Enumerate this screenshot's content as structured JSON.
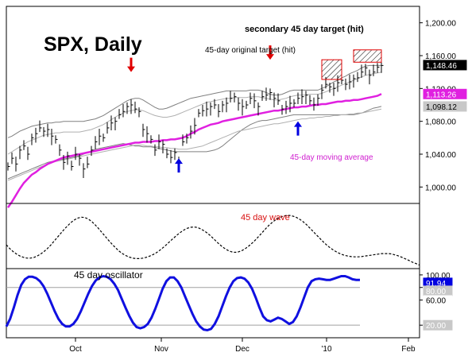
{
  "chart_data": {
    "type": "line",
    "title": "SPX, Daily",
    "annotations": {
      "secondary_target": "secondary 45 day target (hit)",
      "original_target": "45-day original target (hit)",
      "moving_average": "45-day moving average",
      "wave": "45 day wave",
      "oscillator": "45 day oscillator"
    },
    "x_tick_labels": [
      "Oct",
      "Nov",
      "Dec",
      "'10",
      "Feb"
    ],
    "price_panel": {
      "ylim": [
        980,
        1220
      ],
      "y_ticks": [
        1000,
        1040,
        1080,
        1120,
        1160,
        1200
      ],
      "y_tick_labels": [
        "1,000.00",
        "1,040.00",
        "1,080.00",
        "1,120.00",
        "1,160.00",
        "1,200.00"
      ],
      "value_tags": [
        {
          "label": "1,148.46",
          "value": 1148.46,
          "bg": "#000000",
          "fg": "#ffffff"
        },
        {
          "label": "1,113.26",
          "value": 1113.26,
          "bg": "#e020e0",
          "fg": "#ffffff"
        },
        {
          "label": "1,098.12",
          "value": 1098.12,
          "bg": "#c8c8c8",
          "fg": "#000000"
        }
      ],
      "close": [
        1025,
        1035,
        1028,
        1045,
        1050,
        1040,
        1060,
        1065,
        1072,
        1068,
        1070,
        1062,
        1058,
        1045,
        1030,
        1038,
        1025,
        1040,
        1035,
        1022,
        1028,
        1045,
        1055,
        1062,
        1060,
        1072,
        1078,
        1080,
        1088,
        1092,
        1098,
        1100,
        1095,
        1092,
        1070,
        1065,
        1058,
        1045,
        1055,
        1052,
        1040,
        1036,
        1042,
        1030,
        1055,
        1060,
        1068,
        1075,
        1090,
        1093,
        1095,
        1098,
        1100,
        1092,
        1100,
        1102,
        1108,
        1110,
        1102,
        1098,
        1100,
        1108,
        1105,
        1098,
        1110,
        1112,
        1115,
        1108,
        1105,
        1095,
        1098,
        1102,
        1102,
        1108,
        1110,
        1112,
        1105,
        1100,
        1108,
        1118,
        1125,
        1122,
        1120,
        1127,
        1130,
        1125,
        1128,
        1132,
        1133,
        1140,
        1145,
        1136,
        1140,
        1146,
        1148
      ],
      "ma45": [
        975,
        982,
        990,
        998,
        1005,
        1010,
        1015,
        1018,
        1022,
        1025,
        1028,
        1030,
        1032,
        1034,
        1036,
        1037,
        1038,
        1039,
        1040,
        1041,
        1042,
        1043,
        1044,
        1045,
        1046,
        1047,
        1048,
        1049,
        1050,
        1051,
        1052,
        1053,
        1054,
        1054,
        1055,
        1055,
        1055,
        1056,
        1056,
        1057,
        1057,
        1058,
        1058,
        1059,
        1060,
        1062,
        1065,
        1067,
        1070,
        1072,
        1074,
        1076,
        1077,
        1078,
        1080,
        1081,
        1082,
        1083,
        1084,
        1085,
        1086,
        1087,
        1088,
        1089,
        1090,
        1091,
        1092,
        1093,
        1093,
        1094,
        1095,
        1096,
        1097,
        1097,
        1098,
        1098,
        1099,
        1100,
        1100,
        1101,
        1101,
        1102,
        1103,
        1104,
        1104,
        1105,
        1105,
        1106,
        1106,
        1107,
        1108,
        1109,
        1110,
        1111,
        1113.26
      ],
      "upper_band": [
        1060,
        1062,
        1065,
        1068,
        1070,
        1072,
        1074,
        1075,
        1076,
        1077,
        1078,
        1078,
        1079,
        1079,
        1080,
        1080,
        1080,
        1080,
        1080,
        1080,
        1081,
        1082,
        1083,
        1085,
        1087,
        1090,
        1093,
        1096,
        1099,
        1102,
        1105,
        1107,
        1108,
        1108,
        1106,
        1103,
        1100,
        1097,
        1095,
        1095,
        1096,
        1098,
        1100,
        1102,
        1104,
        1106,
        1108,
        1109,
        1110,
        1111,
        1112,
        1113,
        1114,
        1115,
        1116,
        1117,
        1117,
        1117,
        1117,
        1117,
        1117,
        1118,
        1118,
        1118,
        1117,
        1115,
        1113,
        1112,
        1112,
        1113,
        1115,
        1117,
        1118,
        1118,
        1118,
        1118,
        1118,
        1118,
        1118,
        1120,
        1122,
        1125,
        1128,
        1130,
        1133,
        1135,
        1138,
        1140,
        1142,
        1145,
        1147,
        1148,
        1148,
        1148,
        1148
      ],
      "lower_band": [
        1010,
        1012,
        1014,
        1016,
        1018,
        1020,
        1022,
        1024,
        1026,
        1028,
        1030,
        1031,
        1032,
        1033,
        1034,
        1035,
        1036,
        1037,
        1038,
        1040,
        1042,
        1044,
        1046,
        1047,
        1048,
        1049,
        1050,
        1051,
        1052,
        1053,
        1052,
        1051,
        1050,
        1050,
        1049,
        1049,
        1049,
        1048,
        1047,
        1046,
        1045,
        1044,
        1043,
        1043,
        1043,
        1043,
        1043,
        1043,
        1043,
        1043,
        1043,
        1044,
        1045,
        1047,
        1050,
        1054,
        1058,
        1062,
        1066,
        1070,
        1073,
        1076,
        1078,
        1080,
        1081,
        1081,
        1082,
        1083,
        1084,
        1085,
        1086,
        1087,
        1088,
        1088,
        1088,
        1088,
        1088,
        1088,
        1088,
        1088,
        1088,
        1088,
        1088,
        1088,
        1088,
        1088,
        1088,
        1088,
        1089,
        1090,
        1092,
        1094,
        1096,
        1097,
        1098.12
      ],
      "inner_upper": [
        1040,
        1043,
        1046,
        1049,
        1052,
        1055,
        1057,
        1059,
        1061,
        1063,
        1064,
        1065,
        1066,
        1066,
        1067,
        1067,
        1067,
        1067,
        1067,
        1068,
        1069,
        1070,
        1072,
        1074,
        1076,
        1079,
        1082,
        1085,
        1088,
        1090,
        1092,
        1093,
        1094,
        1094,
        1093,
        1091,
        1089,
        1087,
        1086,
        1085,
        1085,
        1086,
        1087,
        1089,
        1091,
        1093,
        1095,
        1097,
        1099,
        1101,
        1103,
        1104,
        1105,
        1106,
        1107,
        1108,
        1108,
        1109,
        1109,
        1109,
        1109,
        1110,
        1110,
        1110,
        1109,
        1108,
        1107,
        1106,
        1106,
        1107,
        1108,
        1110,
        1111,
        1112,
        1112,
        1112,
        1113,
        1113,
        1113,
        1114,
        1116,
        1118,
        1120,
        1122,
        1124,
        1126,
        1128,
        1130,
        1132,
        1134,
        1136,
        1137,
        1138,
        1139,
        1140
      ],
      "inner_lower": [
        1008,
        1010,
        1012,
        1014,
        1016,
        1018,
        1020,
        1022,
        1024,
        1026,
        1028,
        1030,
        1031,
        1032,
        1033,
        1034,
        1035,
        1036,
        1037,
        1038,
        1039,
        1040,
        1041,
        1042,
        1043,
        1044,
        1045,
        1046,
        1047,
        1048,
        1049,
        1050,
        1051,
        1051,
        1051,
        1050,
        1050,
        1049,
        1049,
        1048,
        1048,
        1047,
        1047,
        1046,
        1046,
        1046,
        1047,
        1048,
        1049,
        1050,
        1052,
        1054,
        1056,
        1058,
        1060,
        1062,
        1064,
        1066,
        1068,
        1069,
        1070,
        1071,
        1072,
        1073,
        1074,
        1075,
        1076,
        1077,
        1077,
        1078,
        1079,
        1080,
        1081,
        1082,
        1083,
        1083,
        1084,
        1084,
        1085,
        1085,
        1086,
        1086,
        1087,
        1087,
        1088,
        1088,
        1089,
        1089,
        1090,
        1090,
        1091,
        1092,
        1093,
        1094,
        1095
      ],
      "target_boxes": [
        {
          "x_start": 79,
          "x_end": 84,
          "y_low": 1131,
          "y_high": 1155
        },
        {
          "x_start": 87,
          "x_end": 94,
          "y_low": 1152,
          "y_high": 1167
        }
      ],
      "red_arrows_x": [
        31,
        66
      ],
      "blue_arrows_x": [
        43,
        73
      ]
    },
    "wave_panel": {
      "ylim": [
        -1.3,
        1.3
      ],
      "wave": [
        -0.35,
        -0.5,
        -0.62,
        -0.72,
        -0.8,
        -0.85,
        -0.88,
        -0.88,
        -0.86,
        -0.8,
        -0.72,
        -0.62,
        -0.5,
        -0.36,
        -0.2,
        -0.04,
        0.12,
        0.28,
        0.42,
        0.55,
        0.65,
        0.72,
        0.75,
        0.74,
        0.68,
        0.58,
        0.45,
        0.3,
        0.14,
        -0.02,
        -0.18,
        -0.33,
        -0.47,
        -0.6,
        -0.7,
        -0.78,
        -0.84,
        -0.88,
        -0.9,
        -0.9,
        -0.88,
        -0.85,
        -0.8,
        -0.74,
        -0.66,
        -0.56,
        -0.45,
        -0.33,
        -0.2,
        -0.08,
        0.04,
        0.15,
        0.24,
        0.31,
        0.35,
        0.36,
        0.34,
        0.28,
        0.2,
        0.1,
        -0.02,
        -0.15,
        -0.28,
        -0.4,
        -0.5,
        -0.58,
        -0.63,
        -0.65,
        -0.63,
        -0.58,
        -0.5,
        -0.4,
        -0.28,
        -0.15,
        0,
        0.15,
        0.3,
        0.44,
        0.56,
        0.66,
        0.74,
        0.79,
        0.82,
        0.82,
        0.79,
        0.74,
        0.66,
        0.56,
        0.44,
        0.3,
        0.16,
        0.02,
        -0.12,
        -0.26,
        -0.38,
        -0.49,
        -0.58,
        -0.66,
        -0.72,
        -0.77,
        -0.8,
        -0.82,
        -0.83,
        -0.83,
        -0.82,
        -0.8,
        -0.78,
        -0.76,
        -0.74,
        -0.72,
        -0.7,
        -0.7,
        -0.7,
        -0.72,
        -0.76,
        -0.8,
        -0.86,
        -0.92,
        -0.98,
        -1.05,
        -1.1,
        -1.16
      ]
    },
    "oscillator_panel": {
      "ylim": [
        0,
        110
      ],
      "y_ticks": [
        20,
        60,
        80,
        100
      ],
      "value_tags": [
        {
          "label": "100.00",
          "value": 100,
          "bg": "#ffffff",
          "fg": "#000000"
        },
        {
          "label": "91.94",
          "value": 91.94,
          "bg": "#0000e0",
          "fg": "#ffffff"
        },
        {
          "label": "80.00",
          "value": 80,
          "bg": "#c8c8c8",
          "fg": "#ffffff"
        },
        {
          "label": "60.00",
          "value": 60,
          "bg": "#ffffff",
          "fg": "#000000"
        },
        {
          "label": "20.00",
          "value": 20,
          "bg": "#c8c8c8",
          "fg": "#ffffff"
        }
      ],
      "reference_lines": [
        80,
        20
      ],
      "values": [
        18,
        30,
        48,
        68,
        84,
        93,
        97,
        97,
        95,
        90,
        82,
        70,
        56,
        42,
        30,
        22,
        18,
        18,
        22,
        30,
        42,
        56,
        70,
        82,
        91,
        96,
        98,
        97,
        93,
        86,
        76,
        62,
        48,
        35,
        24,
        17,
        15,
        17,
        22,
        32,
        46,
        62,
        78,
        90,
        96,
        96,
        90,
        80,
        66,
        52,
        38,
        26,
        18,
        13,
        12,
        14,
        22,
        34,
        50,
        66,
        80,
        90,
        95,
        96,
        94,
        88,
        78,
        64,
        48,
        34,
        28,
        26,
        29,
        32,
        30,
        26,
        22,
        25,
        34,
        48,
        64,
        80,
        90,
        93,
        94,
        93,
        92,
        92,
        94,
        96,
        98,
        98,
        96,
        93,
        92,
        91.94
      ]
    }
  }
}
